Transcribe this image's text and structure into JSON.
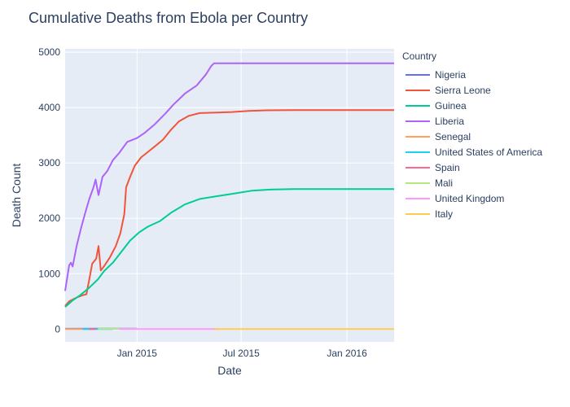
{
  "title": "Cumulative Deaths from Ebola per Country",
  "chart_data": {
    "type": "line",
    "title": "Cumulative Deaths from Ebola per Country",
    "xlabel": "Date",
    "ylabel": "Death Count",
    "xlim": [
      "2014-08-29",
      "2016-03-23"
    ],
    "ylim": [
      -230,
      5060
    ],
    "x_ticks": [
      {
        "date": "2015-01-01",
        "label": "Jan 2015"
      },
      {
        "date": "2015-07-01",
        "label": "Jul 2015"
      },
      {
        "date": "2016-01-01",
        "label": "Jan 2016"
      }
    ],
    "y_ticks": [
      0,
      1000,
      2000,
      3000,
      4000,
      5000
    ],
    "y_tick_labels": [
      "0",
      "1000",
      "2000",
      "3000",
      "4000",
      "5000"
    ],
    "grid": true,
    "legend": {
      "title": "Country",
      "placement": "right"
    },
    "series": [
      {
        "name": "Nigeria",
        "color": "#636efa",
        "points": [
          [
            "2014-08-29",
            7
          ],
          [
            "2014-10-20",
            8
          ],
          [
            "2015-01-01",
            8
          ]
        ]
      },
      {
        "name": "Sierra Leone",
        "color": "#EF553B",
        "points": [
          [
            "2014-08-29",
            420
          ],
          [
            "2014-09-05",
            500
          ],
          [
            "2014-09-12",
            540
          ],
          [
            "2014-09-20",
            580
          ],
          [
            "2014-09-28",
            610
          ],
          [
            "2014-10-05",
            630
          ],
          [
            "2014-10-10",
            900
          ],
          [
            "2014-10-15",
            1180
          ],
          [
            "2014-10-22",
            1270
          ],
          [
            "2014-10-26",
            1500
          ],
          [
            "2014-10-30",
            1060
          ],
          [
            "2014-11-05",
            1140
          ],
          [
            "2014-11-15",
            1300
          ],
          [
            "2014-11-25",
            1500
          ],
          [
            "2014-12-03",
            1730
          ],
          [
            "2014-12-10",
            2080
          ],
          [
            "2014-12-13",
            2560
          ],
          [
            "2014-12-20",
            2750
          ],
          [
            "2014-12-28",
            2950
          ],
          [
            "2015-01-08",
            3100
          ],
          [
            "2015-01-20",
            3200
          ],
          [
            "2015-02-01",
            3300
          ],
          [
            "2015-02-15",
            3420
          ],
          [
            "2015-03-01",
            3600
          ],
          [
            "2015-03-15",
            3750
          ],
          [
            "2015-04-01",
            3850
          ],
          [
            "2015-04-20",
            3900
          ],
          [
            "2015-05-20",
            3910
          ],
          [
            "2015-06-15",
            3920
          ],
          [
            "2015-07-15",
            3940
          ],
          [
            "2015-08-15",
            3950
          ],
          [
            "2015-10-01",
            3955
          ],
          [
            "2016-03-23",
            3955
          ]
        ]
      },
      {
        "name": "Guinea",
        "color": "#00cc96",
        "points": [
          [
            "2014-08-29",
            400
          ],
          [
            "2014-09-10",
            510
          ],
          [
            "2014-09-25",
            620
          ],
          [
            "2014-10-10",
            750
          ],
          [
            "2014-10-25",
            900
          ],
          [
            "2014-11-05",
            1050
          ],
          [
            "2014-11-20",
            1200
          ],
          [
            "2014-12-05",
            1400
          ],
          [
            "2014-12-20",
            1600
          ],
          [
            "2015-01-05",
            1750
          ],
          [
            "2015-01-20",
            1850
          ],
          [
            "2015-02-10",
            1950
          ],
          [
            "2015-03-01",
            2100
          ],
          [
            "2015-03-25",
            2250
          ],
          [
            "2015-04-20",
            2350
          ],
          [
            "2015-05-20",
            2400
          ],
          [
            "2015-06-20",
            2450
          ],
          [
            "2015-07-20",
            2500
          ],
          [
            "2015-08-20",
            2520
          ],
          [
            "2015-10-01",
            2530
          ],
          [
            "2016-03-23",
            2530
          ]
        ]
      },
      {
        "name": "Liberia",
        "color": "#ab63fa",
        "points": [
          [
            "2014-08-29",
            690
          ],
          [
            "2014-09-05",
            1150
          ],
          [
            "2014-09-08",
            1200
          ],
          [
            "2014-09-11",
            1130
          ],
          [
            "2014-09-18",
            1500
          ],
          [
            "2014-09-25",
            1800
          ],
          [
            "2014-10-03",
            2100
          ],
          [
            "2014-10-10",
            2350
          ],
          [
            "2014-10-17",
            2550
          ],
          [
            "2014-10-21",
            2700
          ],
          [
            "2014-10-26",
            2420
          ],
          [
            "2014-11-02",
            2750
          ],
          [
            "2014-11-10",
            2850
          ],
          [
            "2014-11-20",
            3050
          ],
          [
            "2014-12-01",
            3180
          ],
          [
            "2014-12-15",
            3380
          ],
          [
            "2015-01-01",
            3450
          ],
          [
            "2015-01-15",
            3550
          ],
          [
            "2015-02-01",
            3700
          ],
          [
            "2015-02-20",
            3900
          ],
          [
            "2015-03-05",
            4050
          ],
          [
            "2015-03-25",
            4250
          ],
          [
            "2015-04-15",
            4400
          ],
          [
            "2015-05-01",
            4600
          ],
          [
            "2015-05-10",
            4750
          ],
          [
            "2015-05-15",
            4800
          ],
          [
            "2016-03-23",
            4800
          ]
        ]
      },
      {
        "name": "Senegal",
        "color": "#FFA15A",
        "points": [
          [
            "2014-08-29",
            0
          ],
          [
            "2014-10-15",
            0
          ]
        ]
      },
      {
        "name": "United States of America",
        "color": "#19d3f3",
        "points": [
          [
            "2014-09-28",
            1
          ],
          [
            "2014-11-20",
            1
          ]
        ]
      },
      {
        "name": "Spain",
        "color": "#FF6692",
        "points": [
          [
            "2014-10-10",
            0
          ],
          [
            "2014-10-22",
            0
          ]
        ]
      },
      {
        "name": "Mali",
        "color": "#B6E880",
        "points": [
          [
            "2014-10-25",
            6
          ],
          [
            "2014-12-01",
            6
          ],
          [
            "2015-01-01",
            6
          ]
        ]
      },
      {
        "name": "United Kingdom",
        "color": "#FF97FF",
        "points": [
          [
            "2014-12-01",
            0
          ],
          [
            "2015-05-25",
            0
          ]
        ]
      },
      {
        "name": "Italy",
        "color": "#FECB52",
        "points": [
          [
            "2015-05-15",
            0
          ],
          [
            "2016-03-23",
            0
          ]
        ]
      }
    ]
  }
}
